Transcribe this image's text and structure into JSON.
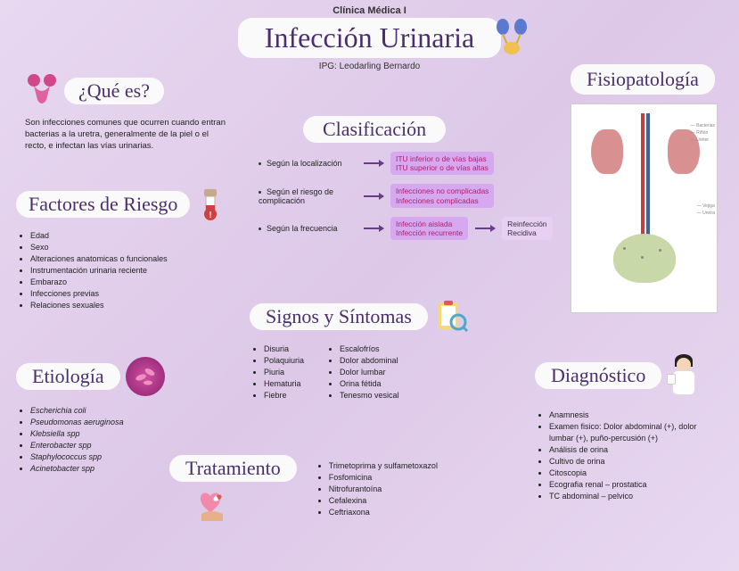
{
  "header": {
    "course": "Clínica Médica I",
    "title": "Infección Urinaria",
    "author": "IPG: Leodarling Bernardo"
  },
  "que_es": {
    "title": "¿Qué es?",
    "text": "Son infecciones comunes que ocurren cuando entran bacterias a la uretra, generalmente de la piel o el recto, e infectan las vías urinarias."
  },
  "fisiopatologia": {
    "title": "Fisiopatología"
  },
  "clasificacion": {
    "title": "Clasificación",
    "rows": [
      {
        "label": "Según la localización",
        "result": "ITU inferior o de vías bajas\nITU superior o de vías altas"
      },
      {
        "label": "Según el riesgo de complicación",
        "result": "Infecciones no complicadas\nInfecciones complicadas"
      },
      {
        "label": "Según la frecuencia",
        "result": "Infección aislada\nInfección recurrente",
        "sub": "Reinfección\nRecidiva"
      }
    ]
  },
  "factores": {
    "title": "Factores de Riesgo",
    "items": [
      "Edad",
      "Sexo",
      "Alteraciones anatomicas o funcionales",
      "Instrumentación urinaria reciente",
      "Embarazo",
      "Infecciones previas",
      "Relaciones sexuales"
    ]
  },
  "etiologia": {
    "title": "Etiología",
    "items": [
      "Escherichia coli",
      "Pseudomonas aeruginosa",
      "Klebsiella spp",
      "Enterobacter spp",
      "Staphylococcus spp",
      "Acinetobacter spp"
    ]
  },
  "signos": {
    "title": "Signos y Síntomas",
    "col1": [
      "Disuria",
      "Polaquiuria",
      "Piuria",
      "Hematuria",
      "Fiebre"
    ],
    "col2": [
      "Escalofríos",
      "Dolor abdominal",
      "Dolor lumbar",
      "Orina fétida",
      "Tenesmo vesical"
    ]
  },
  "diagnostico": {
    "title": "Diagnóstico",
    "items": [
      "Anamnesis",
      "Examen fisico: Dolor abdominal (+), dolor lumbar (+), puño-percusión (+)",
      "Análisis de orina",
      "Cultivo de orina",
      "Citoscopia",
      "Ecografia renal – prostatica",
      "TC abdominal – pelvico"
    ]
  },
  "tratamiento": {
    "title": "Tratamiento",
    "items": [
      "Trimetoprima y sulfametoxazol",
      "Fosfomicina",
      "Nitrofurantoína",
      "Cefalexina",
      "Ceftriaxona"
    ]
  },
  "colors": {
    "title": "#4a2e6e",
    "accent_pink": "#b0206a",
    "card_bg": "#fafafa",
    "purple_box": "#d6a8f0",
    "background": "#e8d8f0"
  }
}
